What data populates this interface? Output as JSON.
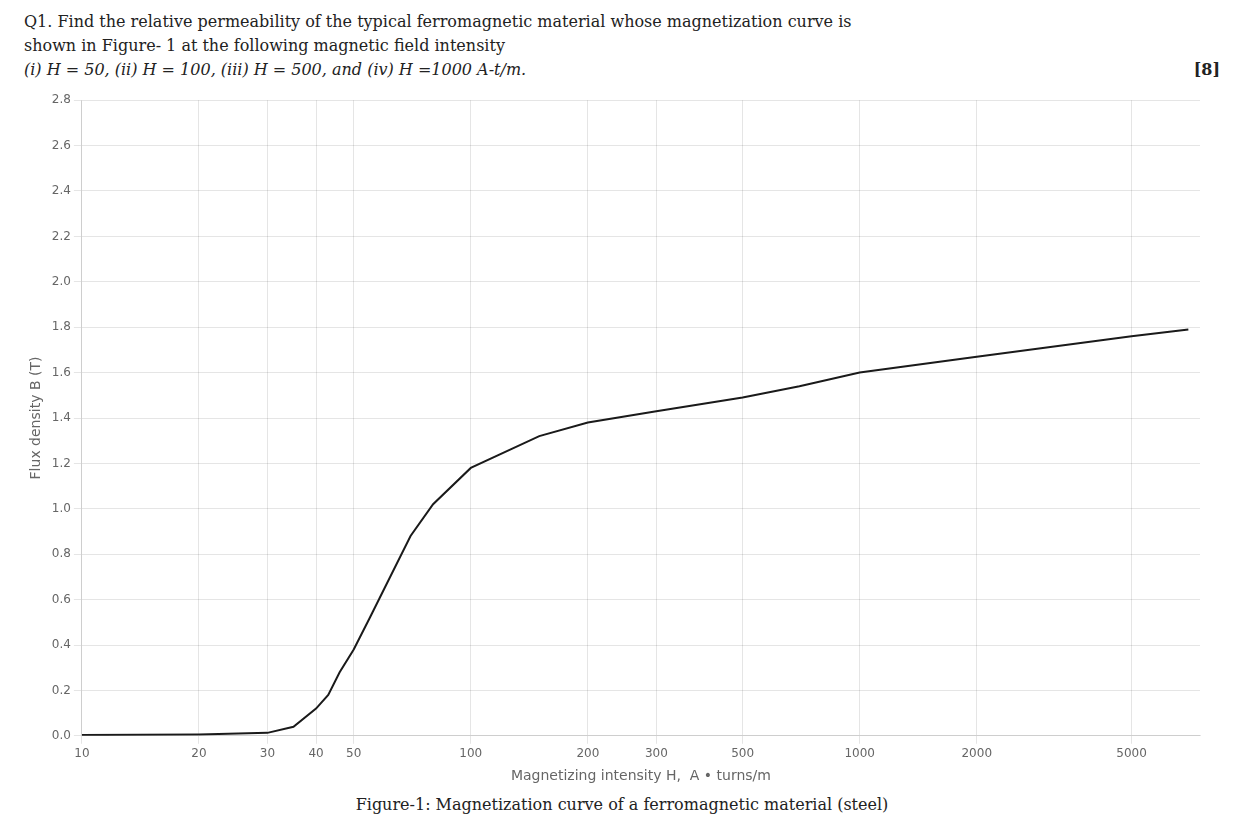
{
  "chart_data": {
    "type": "line",
    "title": [
      "Q1.  Find the relative permeability of the typical ferromagnetic material whose magnetization curve is",
      "shown in Figure- 1 at the following magnetic field intensity",
      "(i) H = 50, (ii) H = 100, (iii) H = 500, and (iv) H =1000 A-t/m."
    ],
    "annotations": [
      "[8]",
      "Figure-1: Magnetization curve of a ferromagnetic material (steel)"
    ],
    "xlabel": "Magnetizing intensity H,  A • turns/m",
    "ylabel": "Flux density B (T)",
    "x": [
      10,
      20,
      30,
      35,
      40,
      43,
      46,
      50,
      55,
      60,
      70,
      80,
      100,
      150,
      200,
      300,
      500,
      700,
      1000,
      2000,
      5000,
      7000
    ],
    "values": [
      0.003,
      0.006,
      0.013,
      0.04,
      0.12,
      0.18,
      0.28,
      0.38,
      0.52,
      0.65,
      0.88,
      1.02,
      1.18,
      1.32,
      1.38,
      1.43,
      1.49,
      1.54,
      1.6,
      1.67,
      1.76,
      1.79
    ],
    "color": "#1a1a1a",
    "log": "x",
    "xlim": [
      10,
      7500
    ],
    "xticks": [
      10,
      20,
      30,
      40,
      50,
      100,
      200,
      300,
      500,
      1000,
      2000,
      5000
    ],
    "ylim": [
      0,
      2.8
    ],
    "yticks": [
      {
        "value": 0,
        "label": "0.0"
      },
      0.2,
      0.4,
      0.6,
      0.8,
      {
        "value": 1.0,
        "label": "1.0"
      },
      1.2,
      1.4,
      1.6,
      1.8,
      {
        "value": 2.0,
        "label": "2.0"
      },
      2.2,
      2.4,
      2.6,
      2.8
    ],
    "grid": true
  }
}
